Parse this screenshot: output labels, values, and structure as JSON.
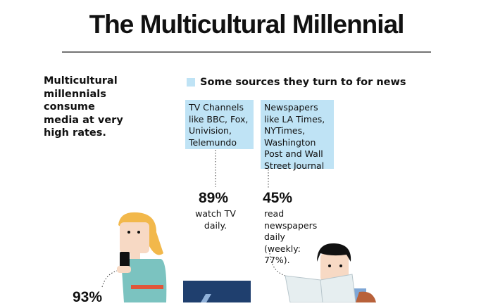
{
  "header": {
    "title": "The Multicultural Millennial"
  },
  "intro": "Multicultural millennials consume media at very high rates.",
  "legend": "Some sources they turn to for news",
  "sources": [
    {
      "box": "TV Channels like BBC, Fox, Univision, Telemundo",
      "stat": "89%",
      "caption": "watch TV daily."
    },
    {
      "box": "Newspapers like LA Times, NYTimes, Washington Post and Wall Street Journal",
      "stat": "45%",
      "caption": "read newspapers daily (weekly: 77%)."
    }
  ],
  "phone_stat": "93%"
}
